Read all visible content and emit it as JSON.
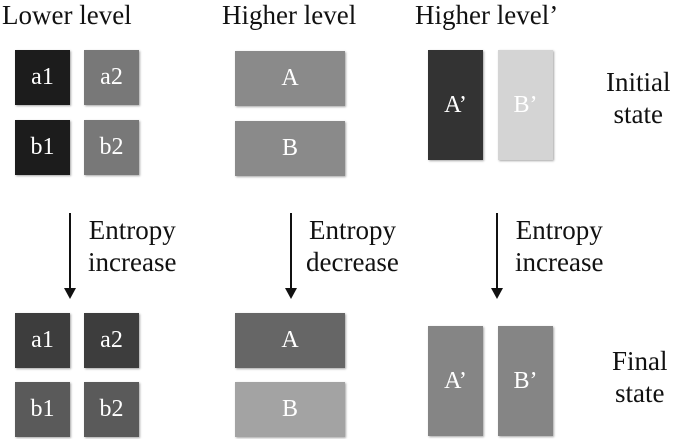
{
  "headers": {
    "lower": "Lower level",
    "higher": "Higher level",
    "higher_prime": "Higher level’"
  },
  "side_labels": {
    "initial": [
      "Initial",
      "state"
    ],
    "final": [
      "Final",
      "state"
    ]
  },
  "arrows": {
    "lower": [
      "Entropy",
      "increase"
    ],
    "higher": [
      "Entropy",
      "decrease"
    ],
    "higher_prime": [
      "Entropy",
      "increase"
    ]
  },
  "initial": {
    "lower": [
      {
        "label": "a1",
        "color": "#1c1c1c"
      },
      {
        "label": "a2",
        "color": "#787878"
      },
      {
        "label": "b1",
        "color": "#1c1c1c"
      },
      {
        "label": "b2",
        "color": "#787878"
      }
    ],
    "higher": [
      {
        "label": "A",
        "color": "#8a8a8a"
      },
      {
        "label": "B",
        "color": "#8a8a8a"
      }
    ],
    "higher_prime": [
      {
        "label": "A’",
        "color": "#333333"
      },
      {
        "label": "B’",
        "color": "#d4d4d4"
      }
    ]
  },
  "final": {
    "lower": [
      {
        "label": "a1",
        "color": "#3d3d3d"
      },
      {
        "label": "a2",
        "color": "#3d3d3d"
      },
      {
        "label": "b1",
        "color": "#5a5a5a"
      },
      {
        "label": "b2",
        "color": "#5a5a5a"
      }
    ],
    "higher": [
      {
        "label": "A",
        "color": "#666666"
      },
      {
        "label": "B",
        "color": "#a3a3a3"
      }
    ],
    "higher_prime": [
      {
        "label": "A’",
        "color": "#858585"
      },
      {
        "label": "B’",
        "color": "#858585"
      }
    ]
  }
}
